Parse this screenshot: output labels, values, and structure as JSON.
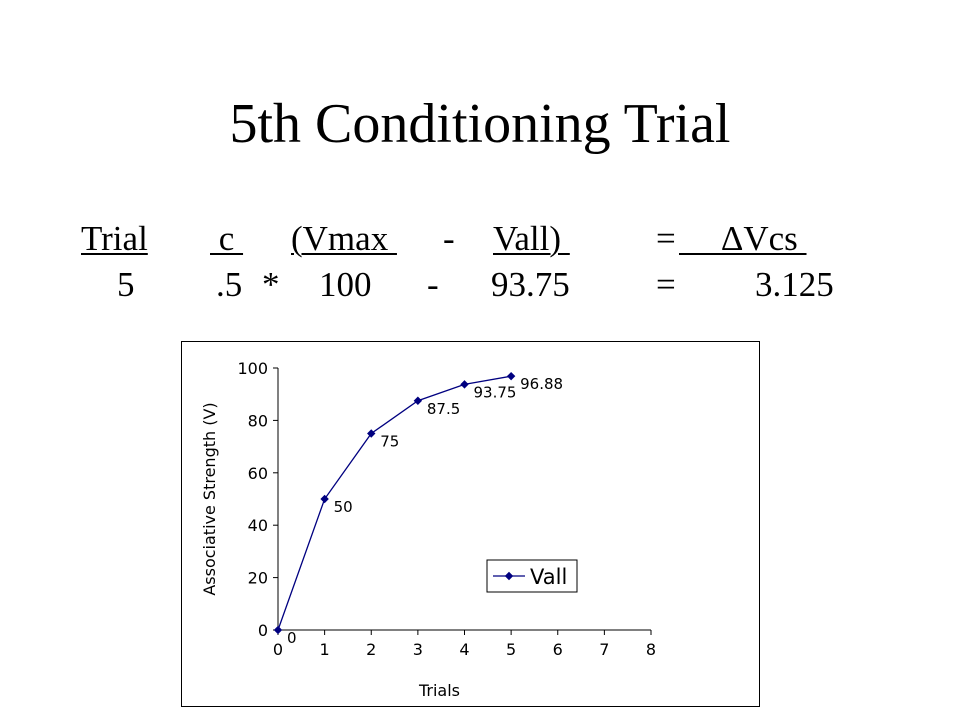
{
  "slide": {
    "title": "5th Conditioning Trial",
    "formula": {
      "header": {
        "trial": "Trial",
        "c": " c ",
        "vmax": "(Vmax ",
        "minus": "-",
        "vall": "Vall) ",
        "equals": "=",
        "delta": "     ΔVcs "
      },
      "values": {
        "trial": "5",
        "c": ".5",
        "times": "*",
        "vmax": "100",
        "minus": "-",
        "vall": "93.75",
        "equals": "=",
        "delta": "3.125"
      }
    }
  },
  "chart_data": {
    "type": "line",
    "xlabel": "Trials",
    "ylabel": "Associative Strength (V)",
    "xlim": [
      0,
      8
    ],
    "ylim": [
      0,
      100
    ],
    "x_ticks": [
      "0",
      "1",
      "2",
      "3",
      "4",
      "5",
      "6",
      "7",
      "8"
    ],
    "y_ticks": [
      "0",
      "20",
      "40",
      "60",
      "80",
      "100"
    ],
    "grid": false,
    "legend": "right",
    "series": [
      {
        "name": "Vall",
        "color": "#000080",
        "x": [
          0,
          1,
          2,
          3,
          4,
          5
        ],
        "values": [
          0,
          50,
          75,
          87.5,
          93.75,
          96.88
        ],
        "labels": [
          "0",
          "50",
          "75",
          "87.5",
          "93.75",
          "96.88"
        ]
      }
    ]
  }
}
